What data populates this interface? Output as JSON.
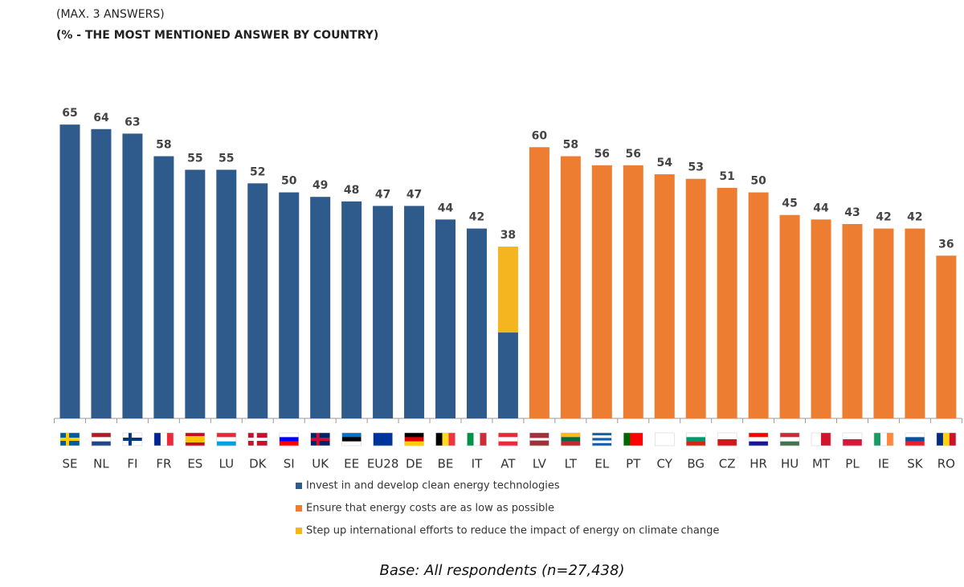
{
  "chart_data": {
    "type": "bar",
    "subtitle": "(MAX. 3 ANSWERS)",
    "note": "(% - THE MOST MENTIONED ANSWER BY COUNTRY)",
    "categories": [
      "SE",
      "NL",
      "FI",
      "FR",
      "ES",
      "LU",
      "DK",
      "SI",
      "UK",
      "EE",
      "EU28",
      "DE",
      "BE",
      "IT",
      "AT",
      "LV",
      "LT",
      "EL",
      "PT",
      "CY",
      "BG",
      "CZ",
      "HR",
      "HU",
      "MT",
      "PL",
      "IE",
      "SK",
      "RO"
    ],
    "series": [
      {
        "name": "Invest in and develop clean energy technologies",
        "color": "#2e5a8c",
        "values": [
          65,
          64,
          63,
          58,
          55,
          55,
          52,
          50,
          49,
          48,
          47,
          47,
          44,
          42,
          19,
          null,
          null,
          null,
          null,
          null,
          null,
          null,
          null,
          null,
          null,
          null,
          null,
          null,
          null
        ]
      },
      {
        "name": "Ensure that energy costs are as low as possible",
        "color": "#ed7d31",
        "values": [
          null,
          null,
          null,
          null,
          null,
          null,
          null,
          null,
          null,
          null,
          null,
          null,
          null,
          null,
          null,
          60,
          58,
          56,
          56,
          54,
          53,
          51,
          50,
          45,
          44,
          43,
          42,
          42,
          36
        ]
      },
      {
        "name": "Step up international efforts to reduce the impact of energy on climate change",
        "color": "#f5b521",
        "values": [
          null,
          null,
          null,
          null,
          null,
          null,
          null,
          null,
          null,
          null,
          null,
          null,
          null,
          null,
          19,
          null,
          null,
          null,
          null,
          null,
          null,
          null,
          null,
          null,
          null,
          null,
          null,
          null,
          null
        ]
      }
    ],
    "totals": [
      65,
      64,
      63,
      58,
      55,
      55,
      52,
      50,
      49,
      48,
      47,
      47,
      44,
      42,
      38,
      60,
      58,
      56,
      56,
      54,
      53,
      51,
      50,
      45,
      44,
      43,
      42,
      42,
      36
    ],
    "ylim": [
      0,
      70
    ],
    "base": "Base: All respondents (n=27,438)"
  }
}
